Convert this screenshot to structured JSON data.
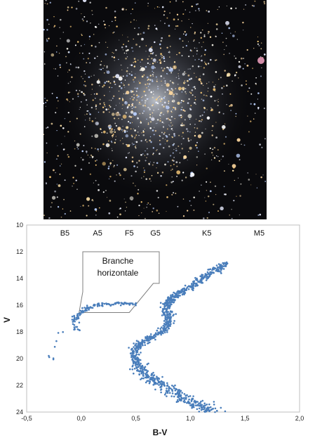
{
  "photo": {
    "alt": "globular star cluster"
  },
  "chart_data": {
    "type": "scatter",
    "xlabel": "B-V",
    "ylabel": "V",
    "xlim": [
      -0.5,
      2.0
    ],
    "ylim": [
      10,
      24
    ],
    "y_inverted": true,
    "x_ticks": [
      "-0,5",
      "0,0",
      "0,5",
      "1,0",
      "1,5",
      "2,0"
    ],
    "x_tick_values": [
      -0.5,
      0.0,
      0.5,
      1.0,
      1.5,
      2.0
    ],
    "y_ticks": [
      "10",
      "12",
      "14",
      "16",
      "18",
      "20",
      "22",
      "24"
    ],
    "y_tick_values": [
      10,
      12,
      14,
      16,
      18,
      20,
      22,
      24
    ],
    "spectral_types": [
      {
        "label": "B5",
        "x": -0.15
      },
      {
        "label": "A5",
        "x": 0.15
      },
      {
        "label": "F5",
        "x": 0.44
      },
      {
        "label": "G5",
        "x": 0.68
      },
      {
        "label": "K5",
        "x": 1.15
      },
      {
        "label": "M5",
        "x": 1.63
      }
    ],
    "annotation": {
      "line1": "Branche",
      "line2": "horizontale"
    },
    "grid": false,
    "point_color": "#4a7ebb",
    "series": [
      {
        "description": "color-magnitude diagram of cluster stars",
        "ridge_main": [
          [
            1.22,
            24.0
          ],
          [
            1.1,
            23.6
          ],
          [
            1.0,
            23.2
          ],
          [
            0.9,
            22.8
          ],
          [
            0.8,
            22.3
          ],
          [
            0.7,
            21.8
          ],
          [
            0.62,
            21.4
          ],
          [
            0.55,
            20.8
          ],
          [
            0.5,
            20.2
          ],
          [
            0.48,
            19.6
          ],
          [
            0.52,
            19.0
          ],
          [
            0.62,
            18.5
          ],
          [
            0.74,
            18.0
          ],
          [
            0.8,
            17.4
          ],
          [
            0.8,
            16.8
          ],
          [
            0.78,
            16.2
          ],
          [
            0.8,
            15.7
          ],
          [
            0.86,
            15.3
          ],
          [
            0.95,
            14.9
          ],
          [
            1.05,
            14.4
          ],
          [
            1.15,
            13.8
          ],
          [
            1.25,
            13.3
          ],
          [
            1.32,
            12.9
          ]
        ],
        "horizontal_branch": [
          [
            -0.04,
            17.9
          ],
          [
            -0.06,
            17.2
          ],
          [
            -0.04,
            16.8
          ],
          [
            0.0,
            16.5
          ],
          [
            0.06,
            16.2
          ],
          [
            0.12,
            16.0
          ],
          [
            0.2,
            15.95
          ],
          [
            0.3,
            15.9
          ],
          [
            0.4,
            15.85
          ],
          [
            0.48,
            15.9
          ]
        ],
        "blue_tail": [
          [
            -0.17,
            17.8
          ],
          [
            -0.2,
            18.4
          ],
          [
            -0.25,
            19.2
          ],
          [
            -0.3,
            20.0
          ],
          [
            -0.24,
            20.0
          ]
        ]
      }
    ]
  }
}
